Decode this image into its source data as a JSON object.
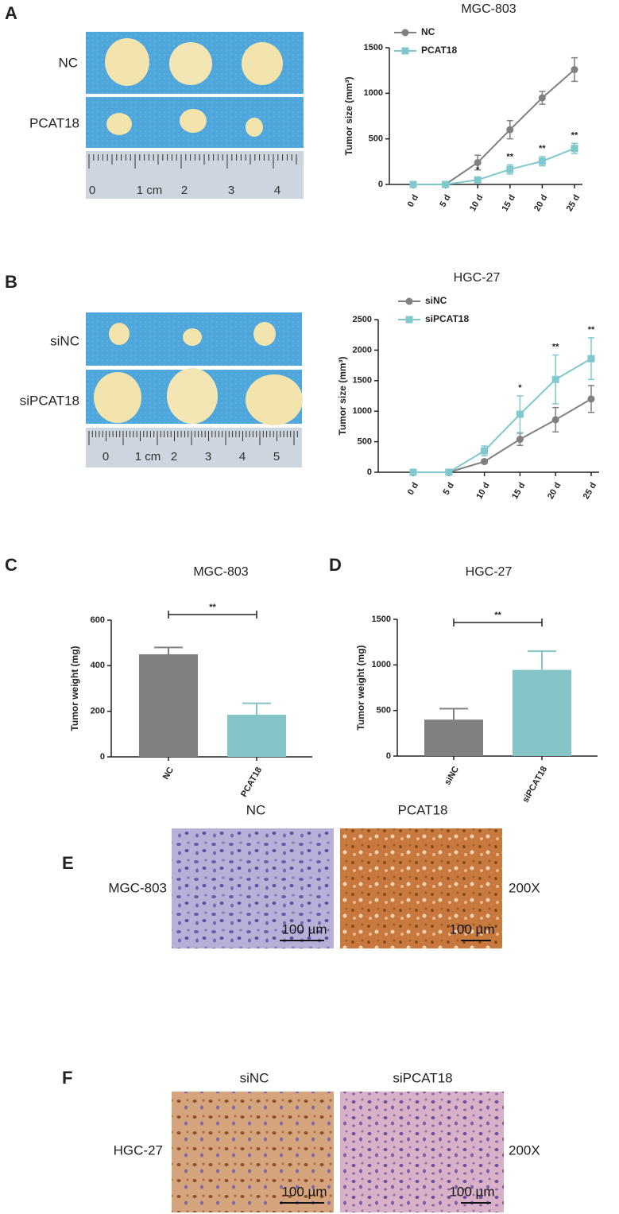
{
  "panel_letters": [
    "A",
    "B",
    "C",
    "D",
    "E",
    "F"
  ],
  "chart_data": [
    {
      "type": "line",
      "title": "MGC-803",
      "ylabel": "Tumor size (mm³)",
      "categories": [
        "0 d",
        "5 d",
        "10 d",
        "15 d",
        "20 d",
        "25 d"
      ],
      "ylim": [
        0,
        1500
      ],
      "yticks": [
        0,
        500,
        1000,
        1500
      ],
      "series": [
        {
          "name": "NC",
          "color": "#808080",
          "marker": "circle",
          "values": [
            0,
            0,
            240,
            600,
            950,
            1260
          ],
          "errors": [
            0,
            0,
            80,
            100,
            70,
            130
          ]
        },
        {
          "name": "PCAT18",
          "color": "#7fc8ce",
          "marker": "square",
          "values": [
            0,
            0,
            50,
            165,
            255,
            395
          ],
          "errors": [
            0,
            0,
            20,
            50,
            50,
            55
          ],
          "significance": [
            null,
            null,
            "*",
            "**",
            "**",
            "**"
          ]
        }
      ]
    },
    {
      "type": "line",
      "title": "HGC-27",
      "ylabel": "Tumor size (mm³)",
      "categories": [
        "0 d",
        "5 d",
        "10 d",
        "15 d",
        "20 d",
        "25 d"
      ],
      "ylim": [
        0,
        2500
      ],
      "yticks": [
        0,
        500,
        1000,
        1500,
        2000,
        2500
      ],
      "series": [
        {
          "name": "siNC",
          "color": "#808080",
          "marker": "circle",
          "values": [
            0,
            0,
            175,
            540,
            860,
            1200
          ],
          "errors": [
            0,
            0,
            30,
            100,
            200,
            220
          ]
        },
        {
          "name": "siPCAT18",
          "color": "#7fc8ce",
          "marker": "square",
          "values": [
            0,
            0,
            350,
            950,
            1520,
            1860
          ],
          "errors": [
            0,
            0,
            80,
            300,
            400,
            340
          ],
          "significance": [
            null,
            null,
            null,
            "*",
            "**",
            "**"
          ]
        }
      ]
    },
    {
      "type": "bar",
      "title": "MGC-803",
      "ylabel": "Tumor weight (mg)",
      "categories": [
        "NC",
        "PCAT18"
      ],
      "values": [
        450,
        185
      ],
      "errors": [
        30,
        50
      ],
      "colors": [
        "#808080",
        "#86c5c7"
      ],
      "ylim": [
        0,
        600
      ],
      "yticks": [
        0,
        200,
        400,
        600
      ],
      "significance": "**"
    },
    {
      "type": "bar",
      "title": "HGC-27",
      "ylabel": "Tumor weight (mg)",
      "categories": [
        "siNC",
        "siPCAT18"
      ],
      "values": [
        400,
        945
      ],
      "errors": [
        120,
        205
      ],
      "colors": [
        "#808080",
        "#86c5c7"
      ],
      "ylim": [
        0,
        1500
      ],
      "yticks": [
        0,
        500,
        1000,
        1500
      ],
      "significance": "**"
    }
  ],
  "photo_panels": [
    {
      "row_labels": [
        "NC",
        "PCAT18"
      ],
      "ruler": [
        "0",
        "1 cm",
        "2",
        "3",
        "4"
      ]
    },
    {
      "row_labels": [
        "siNC",
        "siPCAT18"
      ],
      "ruler": [
        "0",
        "1 cm",
        "2",
        "3",
        "4",
        "5"
      ]
    }
  ],
  "ihc_panels": [
    {
      "columns": [
        "NC",
        "PCAT18"
      ],
      "row_label": "MGC-803",
      "magnification": "200X",
      "scale_bar": "100 µm"
    },
    {
      "columns": [
        "siNC",
        "siPCAT18"
      ],
      "row_label": "HGC-27",
      "magnification": "200X",
      "scale_bar": "100 µm"
    }
  ]
}
